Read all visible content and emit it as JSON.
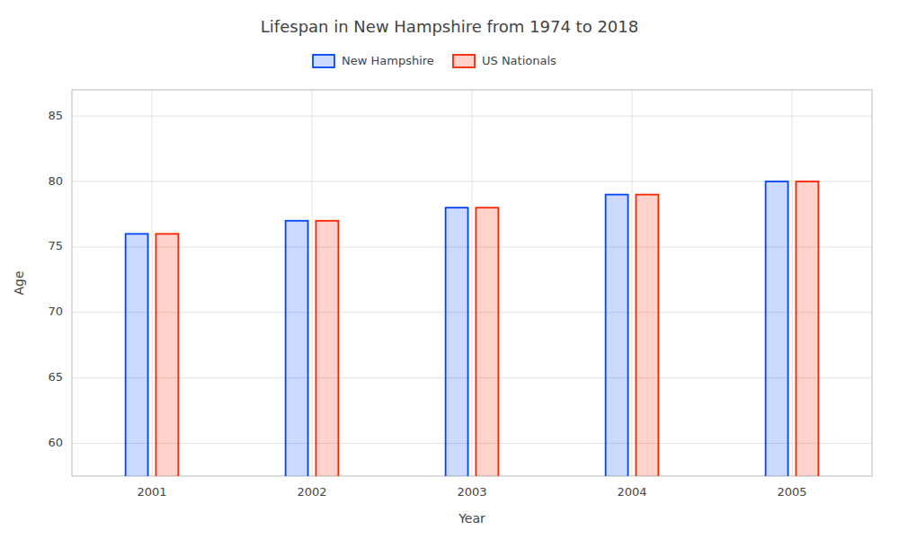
{
  "chart_data": {
    "type": "bar",
    "title": "Lifespan in New Hampshire from 1974 to 2018",
    "x_label": "Year",
    "y_label": "Age",
    "categories": [
      "2001",
      "2002",
      "2003",
      "2004",
      "2005"
    ],
    "series": [
      {
        "name": "New Hampshire",
        "color": "#0044ff",
        "values": [
          76,
          77,
          78,
          79,
          80
        ]
      },
      {
        "name": "US Nationals",
        "color": "#ff2200",
        "values": [
          76,
          77,
          78,
          79,
          80
        ]
      }
    ],
    "ylim": [
      57.5,
      87
    ],
    "yticks": [
      60,
      65,
      70,
      75,
      80,
      85
    ],
    "grid": true,
    "legend": "top"
  }
}
